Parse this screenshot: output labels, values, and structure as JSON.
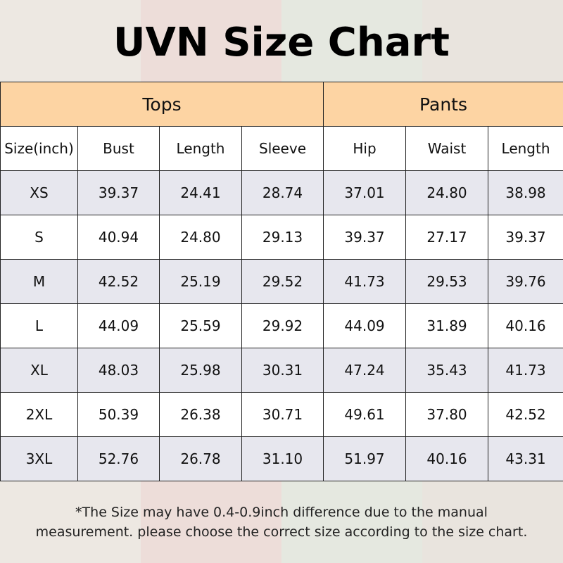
{
  "header": {
    "title": "UVN Size Chart"
  },
  "table": {
    "groups": [
      "Tops",
      "Pants"
    ],
    "columns": [
      "Size(inch)",
      "Bust",
      "Length",
      "Sleeve",
      "Hip",
      "Waist",
      "Length"
    ],
    "rows": [
      [
        "XS",
        "39.37",
        "24.41",
        "28.74",
        "37.01",
        "24.80",
        "38.98"
      ],
      [
        "S",
        "40.94",
        "24.80",
        "29.13",
        "39.37",
        "27.17",
        "39.37"
      ],
      [
        "M",
        "42.52",
        "25.19",
        "29.52",
        "41.73",
        "29.53",
        "39.76"
      ],
      [
        "L",
        "44.09",
        "25.59",
        "29.92",
        "44.09",
        "31.89",
        "40.16"
      ],
      [
        "XL",
        "48.03",
        "25.98",
        "30.31",
        "47.24",
        "35.43",
        "41.73"
      ],
      [
        "2XL",
        "50.39",
        "26.38",
        "30.71",
        "49.61",
        "37.80",
        "42.52"
      ],
      [
        "3XL",
        "52.76",
        "26.78",
        "31.10",
        "51.97",
        "40.16",
        "43.31"
      ]
    ]
  },
  "note": [
    "*The Size may have 0.4-0.9inch difference due to the manual",
    "measurement. please choose the correct size according to the size chart."
  ]
}
